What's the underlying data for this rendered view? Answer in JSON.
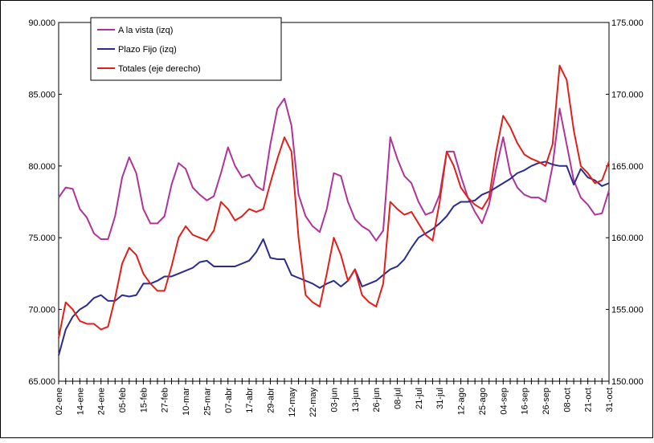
{
  "chart_data": {
    "type": "line",
    "categories": [
      "02-ene",
      null,
      null,
      "14-ene",
      null,
      null,
      "24-ene",
      null,
      null,
      "05-feb",
      null,
      null,
      "15-feb",
      null,
      null,
      "27-feb",
      null,
      null,
      "10-mar",
      null,
      null,
      "25-mar",
      null,
      null,
      "07-abr",
      null,
      null,
      "17-abr",
      null,
      null,
      "29-abr",
      null,
      null,
      "12-may",
      null,
      null,
      "22-may",
      null,
      null,
      "03-jun",
      null,
      null,
      "13-jun",
      null,
      null,
      "26-jun",
      null,
      null,
      "08-jul",
      null,
      null,
      "21-jul",
      null,
      null,
      "31-jul",
      null,
      null,
      "12-ago",
      null,
      null,
      "25-ago",
      null,
      null,
      "04-sep",
      null,
      null,
      "16-sep",
      null,
      null,
      "26-sep",
      null,
      null,
      "08-oct",
      null,
      null,
      "21-oct",
      null,
      null,
      "31-oct"
    ],
    "series": [
      {
        "name": "A la vista (izq)",
        "color": "#b0339a",
        "axis": "y",
        "values": [
          77.8,
          78.5,
          78.4,
          77,
          76.4,
          75.3,
          74.9,
          74.9,
          76.5,
          79.2,
          80.6,
          79.5,
          77,
          76,
          76,
          76.5,
          78.7,
          80.2,
          79.8,
          78.5,
          78,
          77.6,
          77.9,
          79.5,
          81.3,
          80,
          79.2,
          79.4,
          78.6,
          78.3,
          81.5,
          84,
          84.7,
          82.8,
          78,
          76.5,
          75.8,
          75.4,
          77,
          79.5,
          79.3,
          77.5,
          76.3,
          75.8,
          75.5,
          74.8,
          75.5,
          82,
          80.5,
          79.3,
          78.8,
          77.5,
          76.6,
          76.8,
          78,
          81,
          81,
          79.3,
          77.8,
          76.8,
          76,
          77.3,
          79.8,
          82,
          79.5,
          78.5,
          78,
          77.8,
          77.8,
          77.5,
          80,
          84,
          81.5,
          79,
          77.8,
          77.3,
          76.6,
          76.7,
          78.3
        ]
      },
      {
        "name": "Plazo Fijo (izq)",
        "color": "#2b2b8f",
        "axis": "y",
        "values": [
          66.8,
          68.6,
          69.5,
          70,
          70.3,
          70.8,
          71,
          70.6,
          70.6,
          71,
          70.9,
          71,
          71.8,
          71.8,
          72,
          72.3,
          72.3,
          72.5,
          72.7,
          72.9,
          73.3,
          73.4,
          73,
          73,
          73,
          73,
          73.2,
          73.4,
          74,
          74.9,
          73.6,
          73.5,
          73.5,
          72.4,
          72.2,
          72,
          71.8,
          71.5,
          71.8,
          72,
          71.6,
          72,
          72.8,
          71.6,
          71.8,
          72,
          72.4,
          72.8,
          73,
          73.5,
          74.3,
          75,
          75.3,
          75.6,
          76,
          76.5,
          77.2,
          77.5,
          77.5,
          77.6,
          78,
          78.2,
          78.5,
          78.8,
          79.1,
          79.5,
          79.7,
          80,
          80.2,
          80.3,
          80.1,
          80,
          80,
          78.7,
          79.8,
          79.2,
          79,
          78.6,
          78.8
        ]
      },
      {
        "name": "Totales (eje derecho)",
        "color": "#e0201b",
        "axis": "y2",
        "values": [
          153,
          155.5,
          155,
          154.2,
          154,
          154,
          153.6,
          153.8,
          155.8,
          158.2,
          159.3,
          158.8,
          157.5,
          156.8,
          156.3,
          156.3,
          158,
          160,
          160.8,
          160.2,
          160,
          159.8,
          160.5,
          162.5,
          162,
          161.2,
          161.5,
          162,
          161.8,
          162,
          163.8,
          165.5,
          167,
          166,
          160,
          156,
          155.5,
          155.2,
          157.5,
          160,
          158.8,
          157,
          157.8,
          156,
          155.5,
          155.2,
          156.8,
          162.5,
          162,
          161.6,
          161.8,
          161,
          160.2,
          159.8,
          162.5,
          166,
          165,
          163.5,
          162.8,
          162.3,
          162,
          162.8,
          166,
          168.5,
          167.7,
          166.6,
          165.8,
          165.5,
          165.3,
          165,
          166.5,
          172,
          171,
          167.5,
          165,
          164.5,
          163.8,
          164,
          165.3
        ]
      }
    ],
    "ylim": [
      65,
      90
    ],
    "yticks": [
      {
        "value": 65,
        "label": "65.000"
      },
      {
        "value": 70,
        "label": "70.000"
      },
      {
        "value": 75,
        "label": "75.000"
      },
      {
        "value": 80,
        "label": "80.000"
      },
      {
        "value": 85,
        "label": "85.000"
      },
      {
        "value": 90,
        "label": "90.000"
      }
    ],
    "y2lim": [
      150,
      175
    ],
    "y2ticks": [
      {
        "value": 150,
        "label": "150.000"
      },
      {
        "value": 155,
        "label": "155.000"
      },
      {
        "value": 160,
        "label": "160.000"
      },
      {
        "value": 165,
        "label": "165.000"
      },
      {
        "value": 170,
        "label": "170.000"
      },
      {
        "value": 175,
        "label": "175.000"
      }
    ],
    "grid": false,
    "legend": "upper left"
  }
}
